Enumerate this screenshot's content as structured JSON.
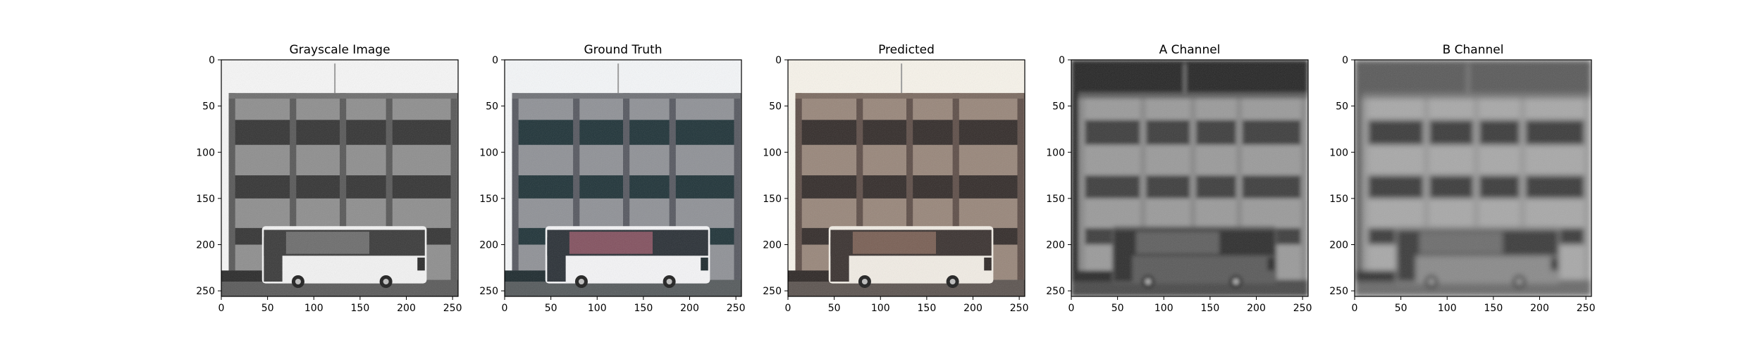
{
  "figure": {
    "background": "#ffffff"
  },
  "chart_data": [
    {
      "type": "image",
      "title": "Grayscale Image",
      "colormap": "gray",
      "xticks": [
        0,
        50,
        100,
        150,
        200,
        250
      ],
      "yticks": [
        0,
        50,
        100,
        150,
        200,
        250
      ],
      "xlim": [
        0,
        256
      ],
      "ylim": [
        256,
        0
      ]
    },
    {
      "type": "image",
      "title": "Ground Truth",
      "colormap": "color",
      "xticks": [
        0,
        50,
        100,
        150,
        200,
        250
      ],
      "yticks": [
        0,
        50,
        100,
        150,
        200,
        250
      ],
      "xlim": [
        0,
        256
      ],
      "ylim": [
        256,
        0
      ]
    },
    {
      "type": "image",
      "title": "Predicted",
      "colormap": "color",
      "xticks": [
        0,
        50,
        100,
        150,
        200,
        250
      ],
      "yticks": [
        0,
        50,
        100,
        150,
        200,
        250
      ],
      "xlim": [
        0,
        256
      ],
      "ylim": [
        256,
        0
      ]
    },
    {
      "type": "image",
      "title": "A Channel",
      "colormap": "gray",
      "xticks": [
        0,
        50,
        100,
        150,
        200,
        250
      ],
      "yticks": [
        0,
        50,
        100,
        150,
        200,
        250
      ],
      "xlim": [
        0,
        256
      ],
      "ylim": [
        256,
        0
      ]
    },
    {
      "type": "image",
      "title": "B Channel",
      "colormap": "gray",
      "xticks": [
        0,
        50,
        100,
        150,
        200,
        250
      ],
      "yticks": [
        0,
        50,
        100,
        150,
        200,
        250
      ],
      "xlim": [
        0,
        256
      ],
      "ylim": [
        256,
        0
      ]
    }
  ]
}
